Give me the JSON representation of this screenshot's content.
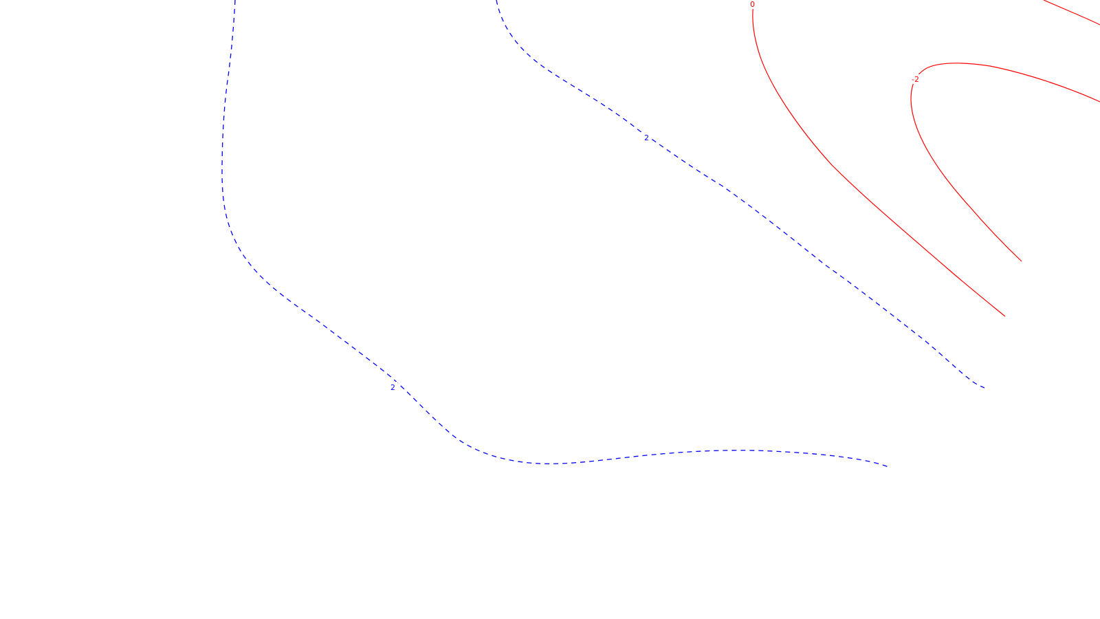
{
  "map": {
    "colors": {
      "background": "#ffffff",
      "positive": "#0000ff",
      "negative": "#ff0000"
    },
    "contours": [
      {
        "id": "contour-2-west",
        "level": 2,
        "style": "dashed",
        "color": "#0000ff",
        "label": "2"
      },
      {
        "id": "contour-2-central",
        "level": 2,
        "style": "dashed",
        "color": "#0000ff",
        "label": "2"
      },
      {
        "id": "contour-0",
        "level": 0,
        "style": "solid",
        "color": "#ff0000",
        "label": "0"
      },
      {
        "id": "contour-minus2",
        "level": -2,
        "style": "solid",
        "color": "#ff0000",
        "label": "-2"
      },
      {
        "id": "contour-edge",
        "style": "solid",
        "color": "#ff0000",
        "label": ""
      }
    ]
  }
}
